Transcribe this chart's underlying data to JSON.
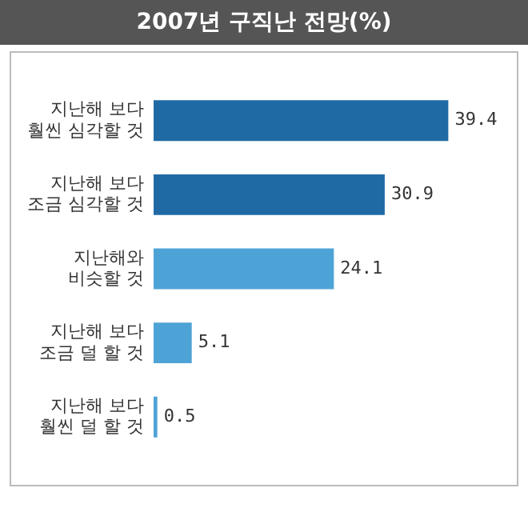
{
  "chart_data": {
    "type": "bar",
    "title": "2007년 구직난 전망(%)",
    "orientation": "horizontal",
    "categories": [
      "지난해 보다\n훨씬 심각할 것",
      "지난해 보다\n조금 심각할 것",
      "지난해와\n비슷할 것",
      "지난해 보다\n조금 덜 할 것",
      "지난해 보다\n훨씬 덜 할 것"
    ],
    "values": [
      39.4,
      30.9,
      24.1,
      5.1,
      0.5
    ],
    "colors": [
      "#1f6aa5",
      "#1f6aa5",
      "#4ea3d6",
      "#4ea3d6",
      "#4ea3d6"
    ],
    "data_labels": true,
    "legend": false,
    "tick_labels": "y"
  }
}
